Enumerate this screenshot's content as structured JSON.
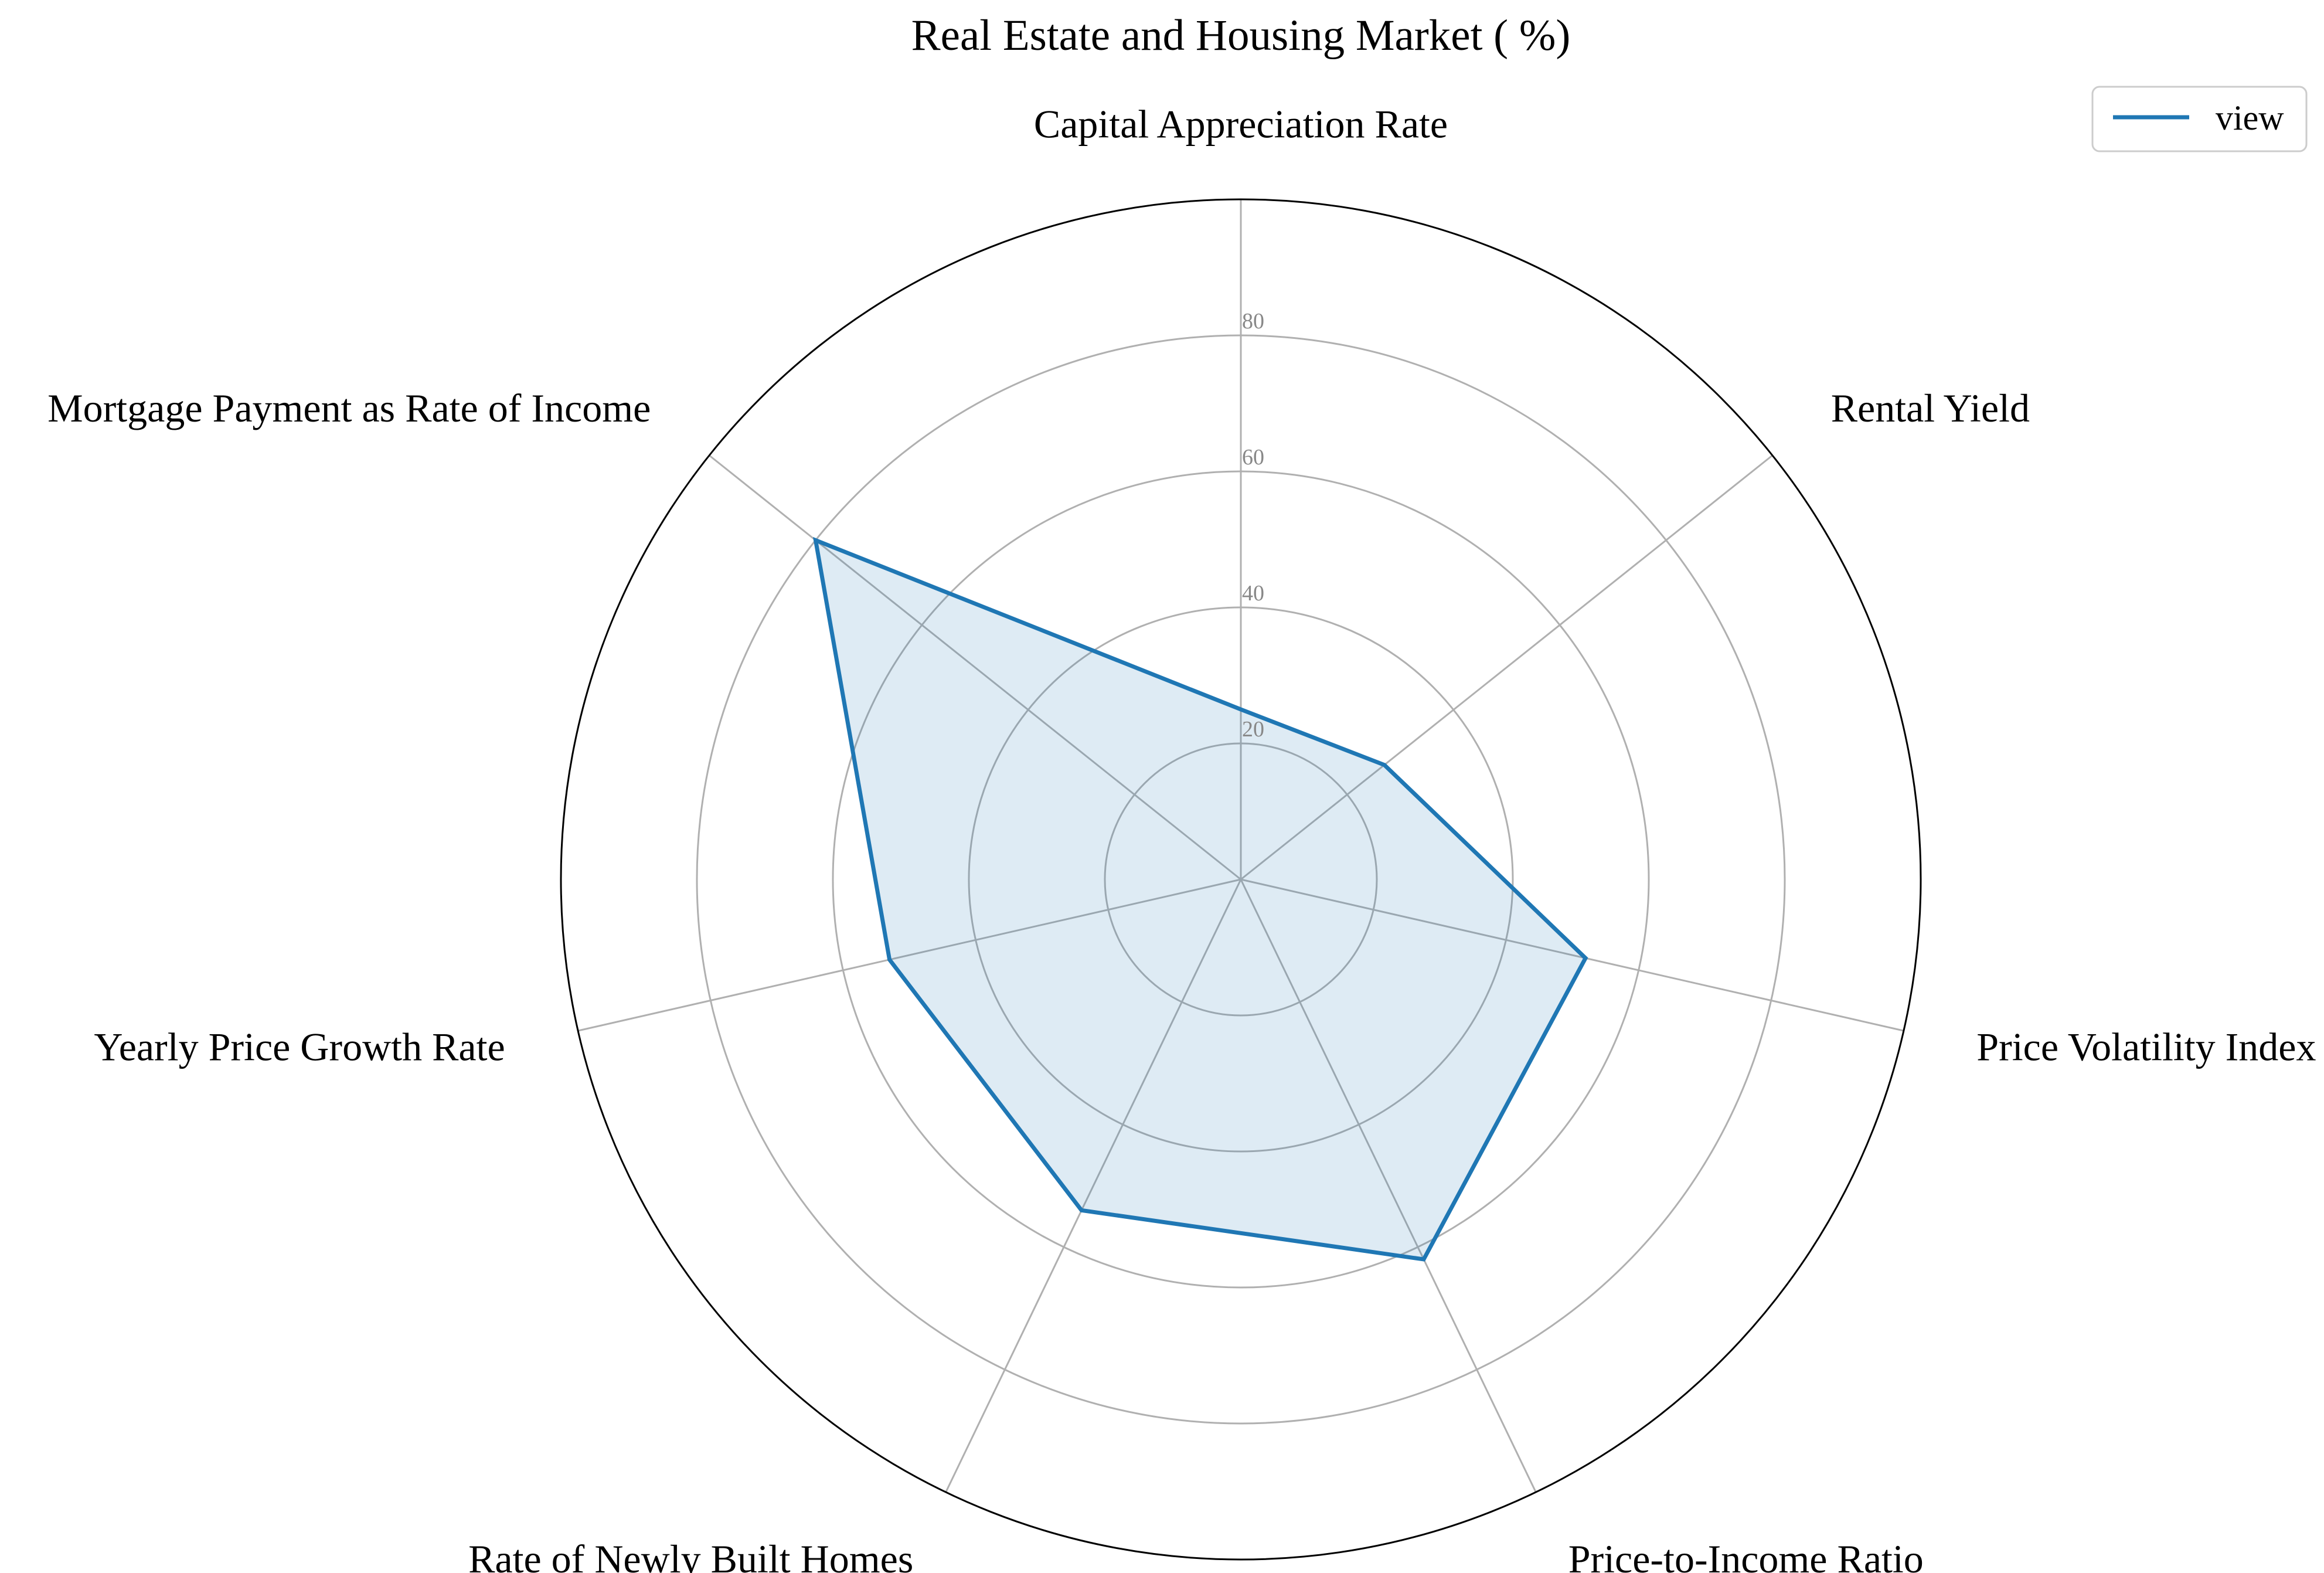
{
  "chart_data": {
    "type": "radar",
    "title": "Real Estate and Housing Market ( %)",
    "categories": [
      "Capital Appreciation Rate",
      "Rental Yield",
      "Price Volatility Index",
      "Price-to-Income Ratio",
      "Rate of Newly Built Homes",
      "Yearly Price Growth Rate",
      "Mortgage Payment as Rate of Income"
    ],
    "series": [
      {
        "name": "view",
        "values": [
          25,
          27,
          52,
          62,
          54,
          53,
          80
        ]
      }
    ],
    "r_ticks": [
      20,
      40,
      60,
      80
    ],
    "r_tick_labels": [
      "20",
      "40",
      "60",
      "80"
    ],
    "rlim": [
      0,
      100
    ],
    "grid": true,
    "legend_position": "top-right",
    "colors": {
      "series": "#1f77b4",
      "fill": "#1f77b4",
      "grid": "#b0b0b0",
      "frame": "#000000"
    }
  }
}
